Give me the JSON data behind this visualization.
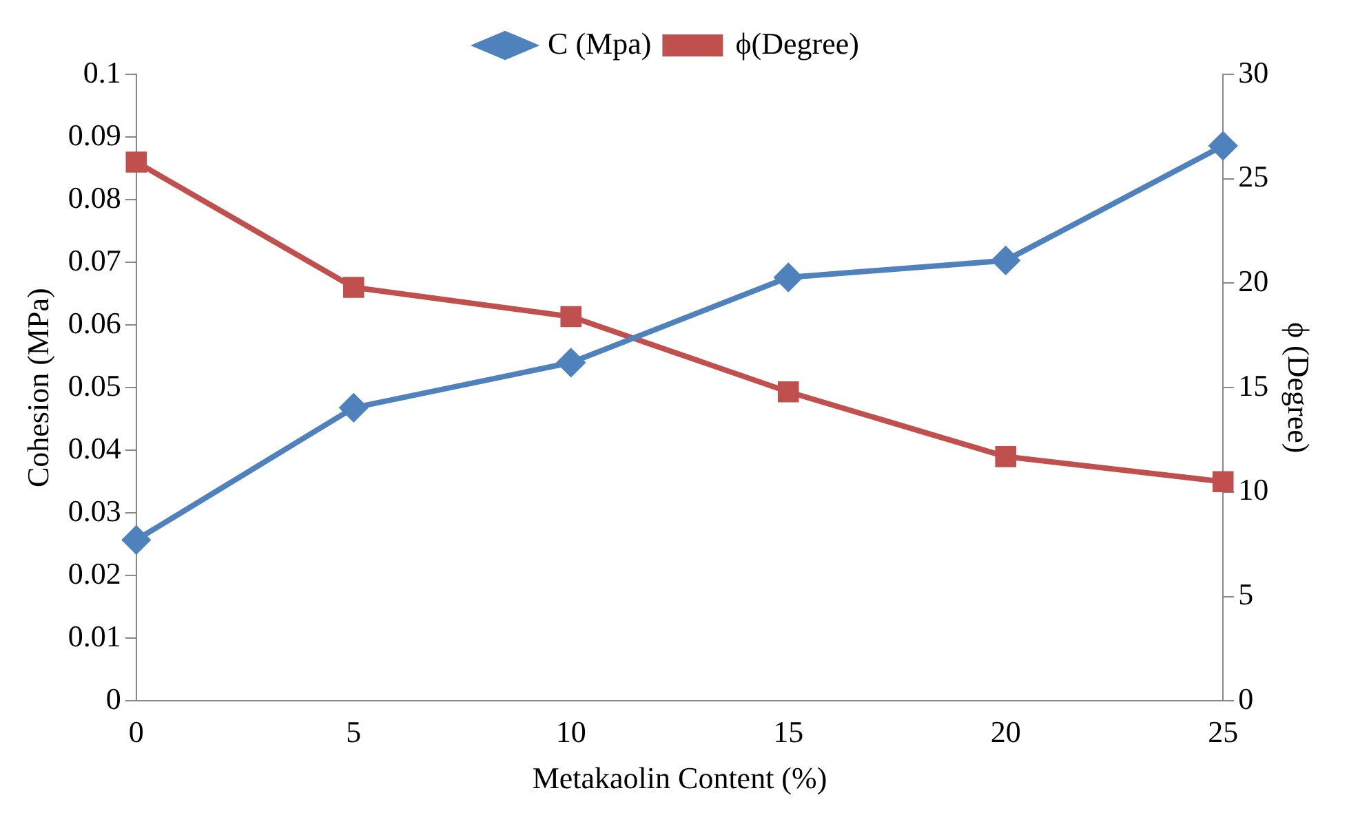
{
  "chart_data": {
    "type": "line",
    "xlabel": "Metakaolin Content (%)",
    "ylabel": "Cohesion (MPa)",
    "y2label": "ϕ (Degree)",
    "categories": [
      "0",
      "5",
      "10",
      "15",
      "20",
      "25"
    ],
    "series": [
      {
        "name": "C (Mpa)",
        "color": "#4f81bd",
        "marker": "diamond",
        "values": [
          0.0257,
          0.0468,
          0.054,
          0.0676,
          0.0703,
          0.0886
        ]
      },
      {
        "name": "ϕ(Degree)",
        "color": "#c0504d",
        "marker": "square",
        "axis": "y2",
        "values": [
          25.8,
          19.8,
          18.4,
          14.8,
          11.7,
          10.5
        ]
      }
    ],
    "ylim": [
      0,
      0.1
    ],
    "yticks": [
      0,
      0.01,
      0.02,
      0.03,
      0.04,
      0.05,
      0.06,
      0.07,
      0.08,
      0.09,
      0.1
    ],
    "y2lim": [
      0,
      30
    ],
    "y2ticks": [
      0,
      5,
      10,
      15,
      20,
      25,
      30
    ],
    "grid": false,
    "legend": "top",
    "line_style": "solid"
  }
}
